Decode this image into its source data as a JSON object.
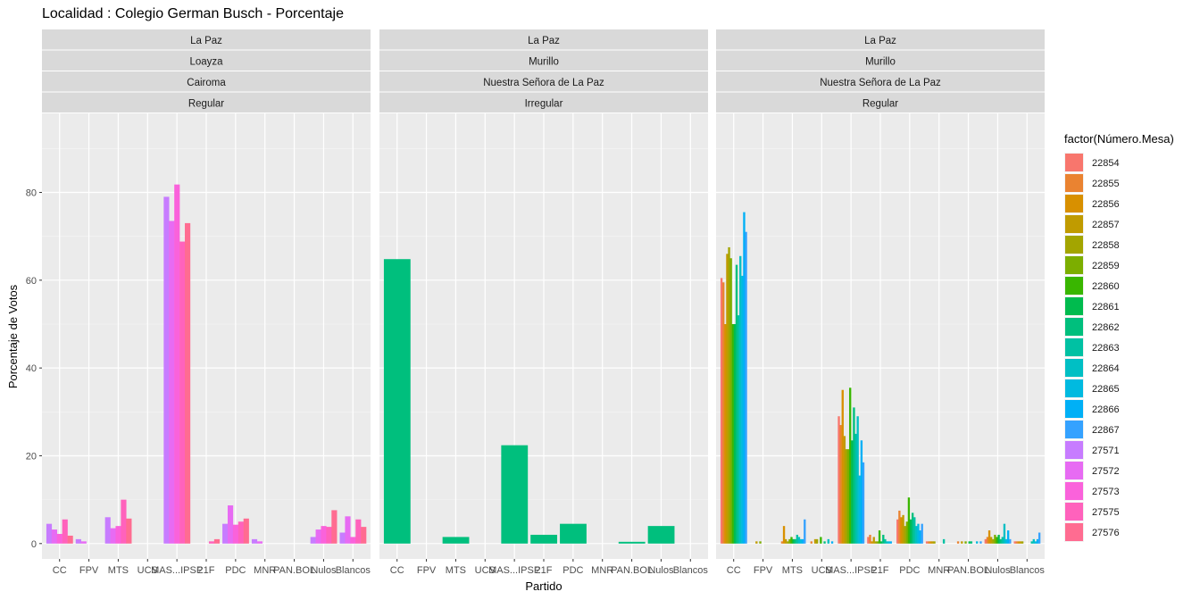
{
  "chart_data": {
    "type": "bar",
    "title": "Localidad : Colegio German Busch - Porcentaje",
    "xlabel": "Partido",
    "ylabel": "Porcentaje de Votos",
    "ylim": [
      -3.5,
      98
    ],
    "yticks": [
      0,
      20,
      40,
      60,
      80
    ],
    "categories": [
      "CC",
      "FPV",
      "MTS",
      "UCS",
      "MAS...IPSP",
      "21F",
      "PDC",
      "MNR",
      "PAN.BOL",
      "Nulos",
      "Blancos"
    ],
    "legend": {
      "title": "factor(Número.Mesa)",
      "position": "right",
      "entries": [
        {
          "label": "22854",
          "color": "#F8766D"
        },
        {
          "label": "22855",
          "color": "#EA8331"
        },
        {
          "label": "22856",
          "color": "#D89000"
        },
        {
          "label": "22857",
          "color": "#C09B00"
        },
        {
          "label": "22858",
          "color": "#A3A500"
        },
        {
          "label": "22859",
          "color": "#7CAE00"
        },
        {
          "label": "22860",
          "color": "#39B600"
        },
        {
          "label": "22861",
          "color": "#00BB4E"
        },
        {
          "label": "22862",
          "color": "#00BF7D"
        },
        {
          "label": "22863",
          "color": "#00C1A3"
        },
        {
          "label": "22864",
          "color": "#00BFC4"
        },
        {
          "label": "22865",
          "color": "#00BAE0"
        },
        {
          "label": "22866",
          "color": "#00B0F6"
        },
        {
          "label": "22867",
          "color": "#35A2FF"
        },
        {
          "label": "27571",
          "color": "#C77CFF"
        },
        {
          "label": "27572",
          "color": "#E76BF3"
        },
        {
          "label": "27573",
          "color": "#FA62DB"
        },
        {
          "label": "27575",
          "color": "#FF62BC"
        },
        {
          "label": "27576",
          "color": "#FF6C91"
        }
      ]
    },
    "panels": [
      {
        "strips": [
          "La Paz",
          "Loayza",
          "Cairoma",
          "Regular"
        ],
        "mesas": [
          "27571",
          "27572",
          "27573",
          "27575",
          "27576"
        ],
        "series": [
          {
            "name": "27571",
            "values": [
              4.5,
              1.0,
              6.0,
              0.0,
              79.0,
              0.0,
              4.5,
              1.0,
              0.0,
              1.5,
              2.5
            ]
          },
          {
            "name": "27572",
            "values": [
              3.2,
              0.5,
              3.5,
              0.0,
              73.5,
              0.0,
              8.7,
              0.5,
              0.0,
              3.2,
              6.2
            ]
          },
          {
            "name": "27573",
            "values": [
              2.2,
              0.0,
              4.0,
              0.0,
              81.8,
              0.0,
              4.3,
              0.0,
              0.0,
              4.0,
              1.5
            ]
          },
          {
            "name": "27575",
            "values": [
              5.5,
              0.0,
              10.0,
              0.0,
              68.8,
              0.5,
              5.0,
              0.0,
              0.0,
              3.8,
              5.5
            ]
          },
          {
            "name": "27576",
            "values": [
              1.8,
              0.0,
              5.7,
              0.0,
              73.0,
              1.0,
              5.7,
              0.0,
              0.0,
              7.6,
              3.8
            ]
          }
        ]
      },
      {
        "strips": [
          "La Paz",
          "Murillo",
          "Nuestra Señora de La Paz",
          "Irregular"
        ],
        "mesas": [
          "22862"
        ],
        "series": [
          {
            "name": "22862",
            "values": [
              64.8,
              0.0,
              1.5,
              0.0,
              22.4,
              2.0,
              4.5,
              0.0,
              0.4,
              4.0,
              0.0
            ]
          }
        ]
      },
      {
        "strips": [
          "La Paz",
          "Murillo",
          "Nuestra Señora de La Paz",
          "Regular"
        ],
        "mesas": [
          "22854",
          "22855",
          "22856",
          "22857",
          "22858",
          "22859",
          "22860",
          "22861",
          "22862",
          "22863",
          "22864",
          "22865",
          "22866",
          "22867"
        ],
        "series": [
          {
            "name": "22854",
            "values": [
              60.5,
              0.0,
              0.0,
              0.0,
              29.0,
              1.5,
              5.5,
              0.5,
              0.0,
              1.0,
              0.5
            ]
          },
          {
            "name": "22855",
            "values": [
              59.5,
              0.0,
              0.5,
              0.5,
              27.0,
              2.0,
              7.5,
              0.5,
              0.5,
              1.5,
              0.5
            ]
          },
          {
            "name": "22856",
            "values": [
              50.0,
              0.0,
              4.0,
              0.0,
              35.0,
              0.5,
              6.0,
              0.5,
              0.0,
              3.0,
              0.5
            ]
          },
          {
            "name": "22857",
            "values": [
              66.0,
              0.5,
              1.0,
              1.0,
              24.5,
              1.5,
              6.5,
              0.5,
              0.5,
              1.5,
              0.5
            ]
          },
          {
            "name": "22858",
            "values": [
              67.5,
              0.0,
              0.5,
              1.0,
              21.5,
              0.5,
              4.0,
              0.5,
              0.0,
              1.0,
              0.5
            ]
          },
          {
            "name": "22859",
            "values": [
              65.0,
              0.5,
              1.0,
              0.0,
              21.5,
              0.5,
              5.0,
              0.0,
              0.5,
              2.0,
              0.0
            ]
          },
          {
            "name": "22860",
            "values": [
              50.0,
              0.0,
              1.5,
              1.5,
              35.5,
              3.0,
              10.5,
              0.0,
              0.0,
              1.5,
              0.0
            ]
          },
          {
            "name": "22861",
            "values": [
              50.0,
              0.0,
              1.0,
              0.0,
              23.5,
              0.5,
              5.5,
              0.0,
              0.5,
              2.0,
              0.0
            ]
          },
          {
            "name": "22862",
            "values": [
              63.5,
              0.0,
              1.0,
              0.5,
              31.0,
              2.0,
              7.0,
              0.0,
              0.5,
              1.0,
              0.0
            ]
          },
          {
            "name": "22863",
            "values": [
              52.0,
              0.0,
              2.0,
              0.0,
              25.0,
              1.0,
              6.0,
              1.0,
              0.0,
              1.5,
              0.5
            ]
          },
          {
            "name": "22864",
            "values": [
              65.5,
              0.0,
              1.5,
              1.0,
              29.0,
              0.5,
              4.0,
              0.0,
              0.0,
              4.5,
              1.0
            ]
          },
          {
            "name": "22865",
            "values": [
              61.0,
              0.0,
              1.0,
              0.0,
              15.5,
              0.5,
              4.5,
              0.0,
              0.5,
              1.0,
              0.5
            ]
          },
          {
            "name": "22866",
            "values": [
              75.5,
              0.0,
              1.0,
              0.5,
              23.5,
              0.5,
              3.0,
              0.0,
              0.0,
              3.0,
              1.0
            ]
          },
          {
            "name": "22867",
            "values": [
              71.0,
              0.0,
              5.5,
              0.0,
              18.5,
              0.0,
              4.5,
              0.0,
              0.5,
              1.0,
              2.5
            ]
          }
        ]
      }
    ]
  }
}
